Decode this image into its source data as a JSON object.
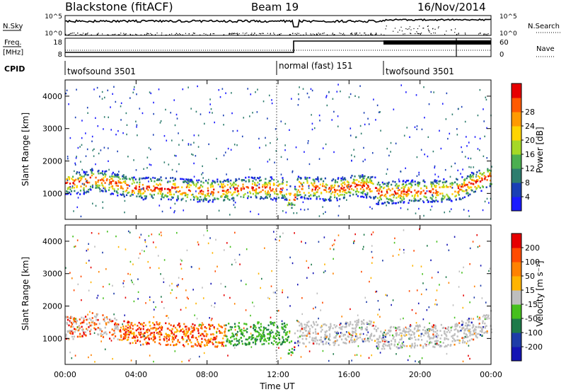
{
  "header": {
    "station": "Blackstone (fitACF)",
    "beam": "Beam 19",
    "date": "16/Nov/2014"
  },
  "side_labels": {
    "nsky": "N.Sky",
    "freq": "Freq.",
    "freq_unit": "[MHz]",
    "cpid": "CPID",
    "nsearch": "N.Search",
    "nave": "Nave"
  },
  "nsky_ticks": [
    "10^5",
    "10^0"
  ],
  "nsearch_ticks": [
    "10^5",
    "10^0"
  ],
  "freq_ticks": [
    "18",
    "8"
  ],
  "nave_ticks": [
    "60",
    "0"
  ],
  "cpid_segments": [
    {
      "label": "twofsound 3501",
      "start_hour": 0.0
    },
    {
      "label": "normal (fast) 151",
      "start_hour": 12.0
    },
    {
      "label": "twofsound 3501",
      "start_hour": 18.0
    }
  ],
  "chart_data": [
    {
      "type": "heatmap",
      "name": "power",
      "ylabel": "Slant Range [km]",
      "xlabel": "",
      "xlim_hours": [
        0,
        24
      ],
      "ylim": [
        200,
        4500
      ],
      "y_ticks": [
        "1000",
        "2000",
        "3000",
        "4000"
      ],
      "colorbar": {
        "label": "Power [dB]",
        "ticks": [
          "4",
          "8",
          "12",
          "16",
          "20",
          "24",
          "28"
        ],
        "colors": [
          "#1a1aff",
          "#1a3fb5",
          "#2e7d6e",
          "#4caf50",
          "#a5d826",
          "#ffd400",
          "#ff9a00",
          "#ff5a00",
          "#e60000"
        ]
      }
    },
    {
      "type": "heatmap",
      "name": "velocity",
      "ylabel": "Slant Range [km]",
      "xlabel": "Time UT",
      "xlim_hours": [
        0,
        24
      ],
      "ylim": [
        200,
        4500
      ],
      "y_ticks": [
        "1000",
        "2000",
        "3000",
        "4000"
      ],
      "x_ticks": [
        "00:00",
        "04:00",
        "08:00",
        "12:00",
        "16:00",
        "20:00",
        "00:00"
      ],
      "colorbar": {
        "label": "Velocity [m s⁻¹]",
        "ticks": [
          "200",
          "100",
          "50",
          "15",
          "-15",
          "-50",
          "-100",
          "-200"
        ],
        "colors": [
          "#1414b4",
          "#1e3ca8",
          "#1e7a4a",
          "#46c01e",
          "#bebebe",
          "#ffb400",
          "#ff8200",
          "#ff4b00",
          "#e60000"
        ]
      }
    }
  ],
  "colors": {
    "ground_scatter": "#bebebe"
  }
}
